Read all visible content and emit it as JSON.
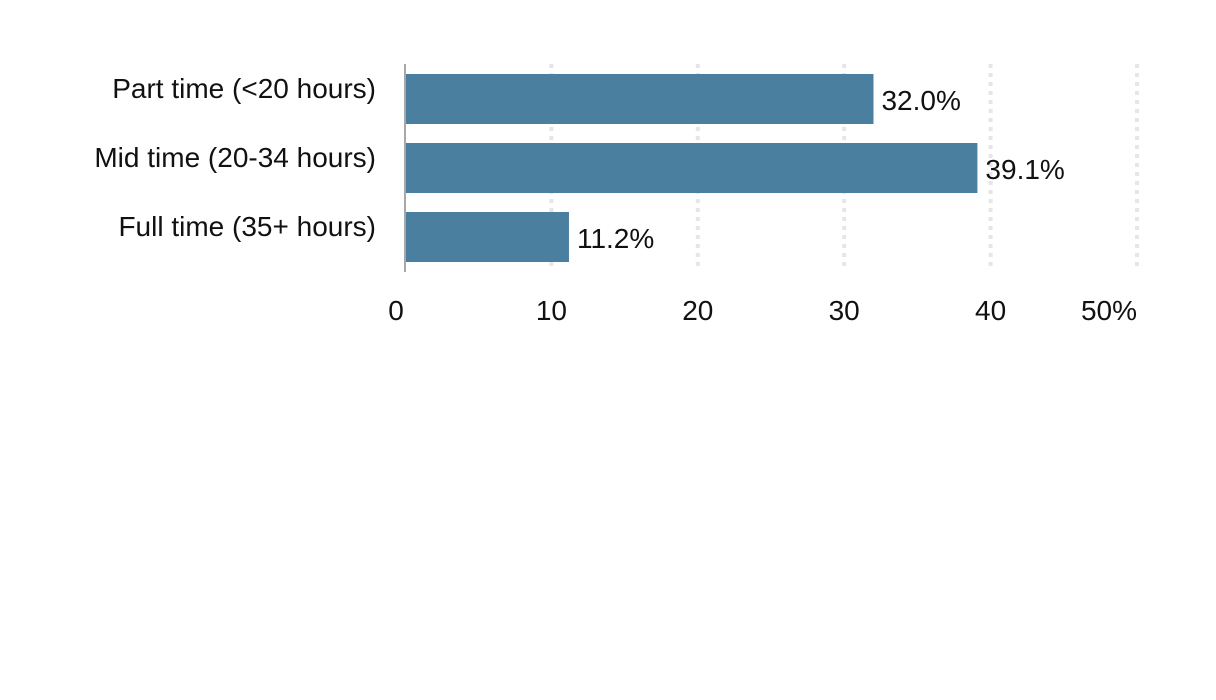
{
  "chart_data": {
    "type": "bar",
    "orientation": "horizontal",
    "categories": [
      "Part time (<20 hours)",
      "Mid time (20-34 hours)",
      "Full time (35+ hours)"
    ],
    "values": [
      32.0,
      39.1,
      11.2
    ],
    "data_labels": [
      "32.0%",
      "39.1%",
      "11.2%"
    ],
    "x_ticks": [
      0,
      10,
      20,
      30,
      40,
      50
    ],
    "x_tick_labels": [
      "0",
      "10",
      "20",
      "30",
      "40",
      "50%"
    ],
    "xlim": [
      0,
      50
    ],
    "grid": true,
    "bar_color": "#4a7fa0",
    "grid_color": "#e6e6e6",
    "axis_color": "#a8a8a8"
  }
}
